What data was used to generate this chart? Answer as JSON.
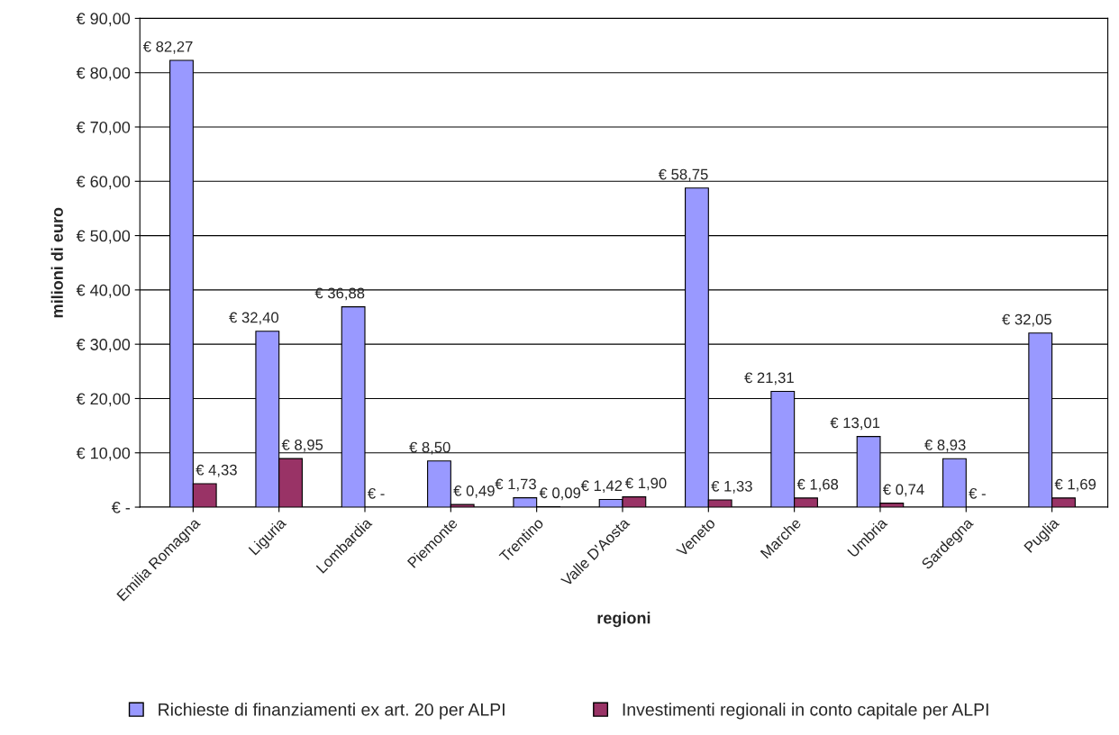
{
  "chart_data": {
    "type": "bar",
    "xlabel": "regioni",
    "ylabel": "milioni di euro",
    "categories": [
      "Emilia Romagna",
      "Liguria",
      "Lombardia",
      "Piemonte",
      "Trentino",
      "Valle D'Aosta",
      "Veneto",
      "Marche",
      "Umbria",
      "Sardegna",
      "Puglia"
    ],
    "series": [
      {
        "name": "Richieste di finanziamenti ex art. 20 per ALPI",
        "color": "#9999ff",
        "values": [
          82.27,
          32.4,
          36.88,
          8.5,
          1.73,
          1.42,
          58.75,
          21.31,
          13.01,
          8.93,
          32.05
        ],
        "value_labels": [
          "€ 82,27",
          "€ 32,40",
          "€ 36,88",
          "€ 8,50",
          "€ 1,73",
          "€ 1,42",
          "€ 58,75",
          "€ 21,31",
          "€ 13,01",
          "€ 8,93",
          "€ 32,05"
        ]
      },
      {
        "name": "Investimenti regionali in conto capitale per ALPI",
        "color": "#993366",
        "values": [
          4.33,
          8.95,
          0,
          0.49,
          0.09,
          1.9,
          1.33,
          1.68,
          0.74,
          0,
          1.69
        ],
        "value_labels": [
          "€ 4,33",
          "€ 8,95",
          "€ -",
          "€ 0,49",
          "€ 0,09",
          "€ 1,90",
          "€ 1,33",
          "€ 1,68",
          "€ 0,74",
          "€ -",
          "€ 1,69"
        ]
      }
    ],
    "ylim": [
      0,
      90
    ],
    "yticks": [
      {
        "value": 0,
        "label": "€ -"
      },
      {
        "value": 10,
        "label": "€ 10,00"
      },
      {
        "value": 20,
        "label": "€ 20,00"
      },
      {
        "value": 30,
        "label": "€ 30,00"
      },
      {
        "value": 40,
        "label": "€ 40,00"
      },
      {
        "value": 50,
        "label": "€ 50,00"
      },
      {
        "value": 60,
        "label": "€ 60,00"
      },
      {
        "value": 70,
        "label": "€ 70,00"
      },
      {
        "value": 80,
        "label": "€ 80,00"
      },
      {
        "value": 90,
        "label": "€ 90,00"
      }
    ],
    "grid": "y",
    "legend": "bottom"
  }
}
